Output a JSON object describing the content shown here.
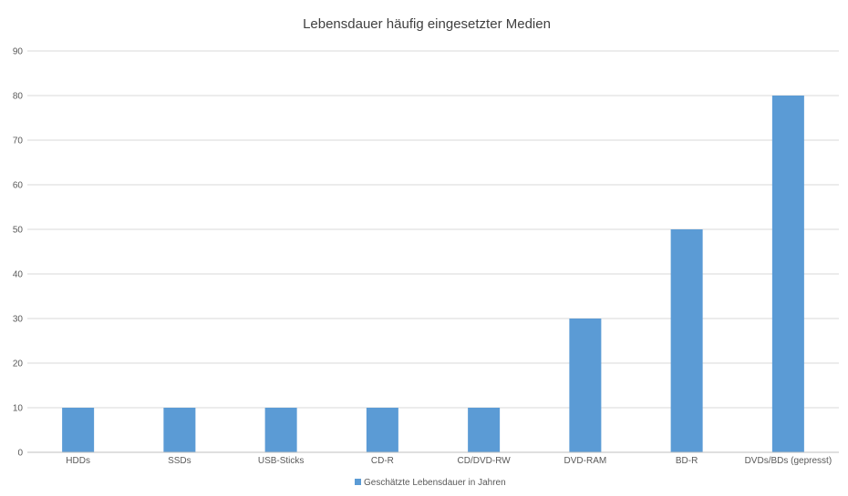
{
  "chart_data": {
    "type": "bar",
    "title": "Lebensdauer häufig eingesetzter Medien",
    "categories": [
      "HDDs",
      "SSDs",
      "USB-Sticks",
      "CD-R",
      "CD/DVD-RW",
      "DVD-RAM",
      "BD-R",
      "DVDs/BDs (gepresst)"
    ],
    "series": [
      {
        "name": "Geschätzte Lebensdauer in Jahren",
        "values": [
          10,
          10,
          10,
          10,
          10,
          30,
          50,
          80
        ],
        "color": "#5B9BD5"
      }
    ],
    "ylim": [
      0,
      90
    ],
    "yticks": [
      0,
      10,
      20,
      30,
      40,
      50,
      60,
      70,
      80,
      90
    ],
    "xlabel": "",
    "ylabel": "",
    "grid": true,
    "legend_position": "bottom"
  }
}
